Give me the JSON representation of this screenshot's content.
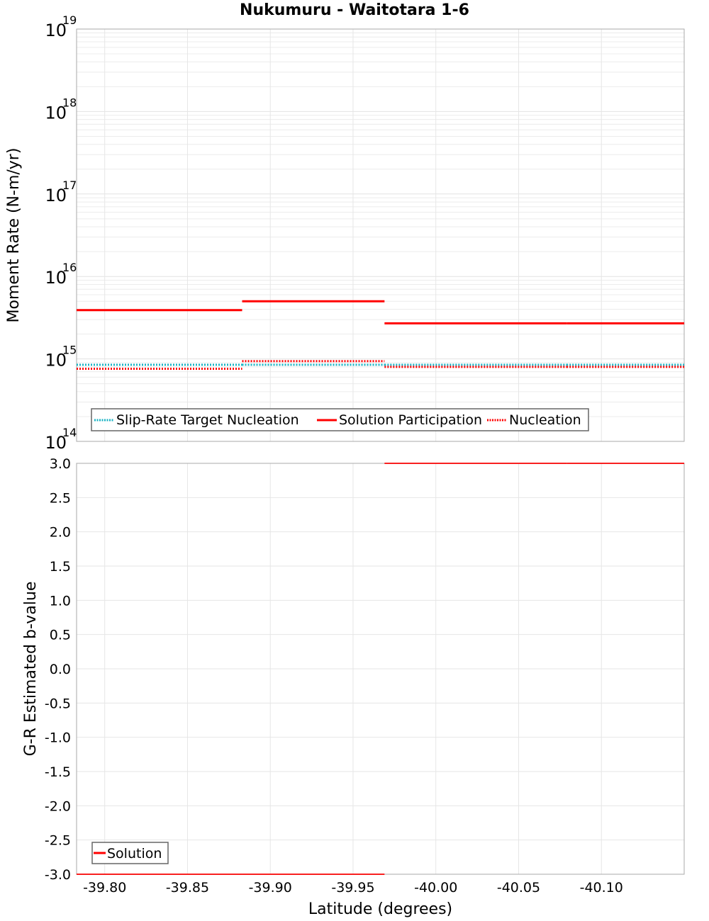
{
  "chart_data": [
    {
      "type": "line",
      "title": "Nukumuru - Waitotara 1-6",
      "xlabel": "Latitude (degrees)",
      "ylabel": "Moment Rate (N-m/yr)",
      "yscale": "log",
      "ylim": [
        100000000000000.0,
        1e+19
      ],
      "xlim": [
        -39.783,
        -40.15
      ],
      "ytick_exponents": [
        14,
        15,
        16,
        17,
        18,
        19
      ],
      "grid": true,
      "legend_position": "lower-left",
      "series": [
        {
          "name": "Slip-Rate Target Nucleation",
          "style": "dotted",
          "color": "#1ab3c4",
          "segments": [
            {
              "x0": -39.783,
              "x1": -39.883,
              "y": 850000000000000.0
            },
            {
              "x0": -39.883,
              "x1": -39.969,
              "y": 850000000000000.0
            },
            {
              "x0": -39.969,
              "x1": -40.079,
              "y": 850000000000000.0
            },
            {
              "x0": -40.079,
              "x1": -40.15,
              "y": 850000000000000.0
            }
          ]
        },
        {
          "name": "Solution Participation",
          "style": "solid",
          "color": "#ff0000",
          "segments": [
            {
              "x0": -39.783,
              "x1": -39.883,
              "y": 3900000000000000.0
            },
            {
              "x0": -39.883,
              "x1": -39.969,
              "y": 5000000000000000.0
            },
            {
              "x0": -39.969,
              "x1": -40.079,
              "y": 2700000000000000.0
            },
            {
              "x0": -40.079,
              "x1": -40.15,
              "y": 2700000000000000.0
            }
          ]
        },
        {
          "name": "Nucleation",
          "style": "dotted",
          "color": "#ff0000",
          "segments": [
            {
              "x0": -39.783,
              "x1": -39.883,
              "y": 760000000000000.0
            },
            {
              "x0": -39.883,
              "x1": -39.969,
              "y": 940000000000000.0
            },
            {
              "x0": -39.969,
              "x1": -40.079,
              "y": 800000000000000.0
            },
            {
              "x0": -40.079,
              "x1": -40.15,
              "y": 800000000000000.0
            }
          ]
        }
      ]
    },
    {
      "type": "line",
      "title": "",
      "xlabel": "Latitude (degrees)",
      "ylabel": "G-R Estimated b-value",
      "ylim": [
        -3.0,
        3.0
      ],
      "xlim": [
        -39.783,
        -40.15
      ],
      "yticks": [
        "3.0",
        "2.5",
        "2.0",
        "1.5",
        "1.0",
        "0.5",
        "0.0",
        "-0.5",
        "-1.0",
        "-1.5",
        "-2.0",
        "-2.5",
        "-3.0"
      ],
      "xticks": [
        "-39.80",
        "-39.85",
        "-39.90",
        "-39.95",
        "-40.00",
        "-40.05",
        "-40.10"
      ],
      "grid": true,
      "legend_position": "lower-left",
      "series": [
        {
          "name": "Solution",
          "style": "solid",
          "color": "#ff0000",
          "segments": [
            {
              "x0": -39.783,
              "x1": -39.883,
              "y": -3.0
            },
            {
              "x0": -39.883,
              "x1": -39.969,
              "y": -3.0
            },
            {
              "x0": -39.969,
              "x1": -40.079,
              "y": 3.0
            },
            {
              "x0": -40.079,
              "x1": -40.15,
              "y": 3.0
            }
          ]
        }
      ]
    }
  ],
  "labels": {
    "title": "Nukumuru - Waitotara 1-6",
    "top_ylabel": "Moment Rate (N-m/yr)",
    "bottom_ylabel": "G-R Estimated b-value",
    "xlabel": "Latitude (degrees)"
  }
}
